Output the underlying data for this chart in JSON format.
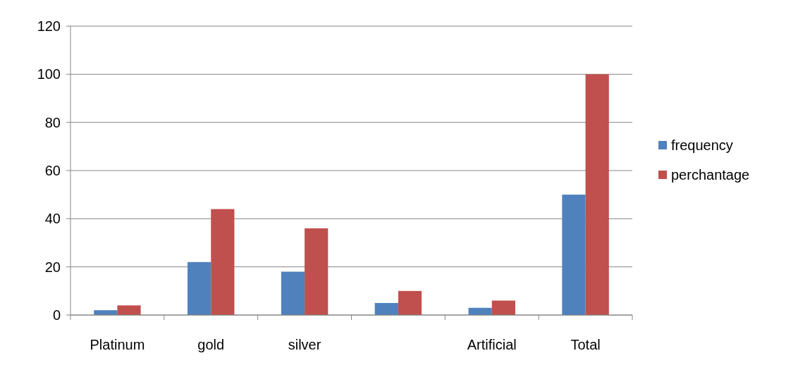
{
  "chart_data": {
    "type": "bar",
    "categories": [
      "Platinum",
      "gold",
      "silver",
      null,
      "Artificial",
      "Total"
    ],
    "series": [
      {
        "name": "frequency",
        "color": "#4f81bd",
        "values": [
          2,
          22,
          18,
          5,
          3,
          50
        ]
      },
      {
        "name": "perchantage",
        "color": "#c0504d",
        "values": [
          4,
          44,
          36,
          10,
          6,
          100
        ]
      }
    ],
    "ylim": [
      0,
      120
    ],
    "yticks": [
      0,
      20,
      40,
      60,
      80,
      100,
      120
    ],
    "grid": "y",
    "legend": "right"
  }
}
